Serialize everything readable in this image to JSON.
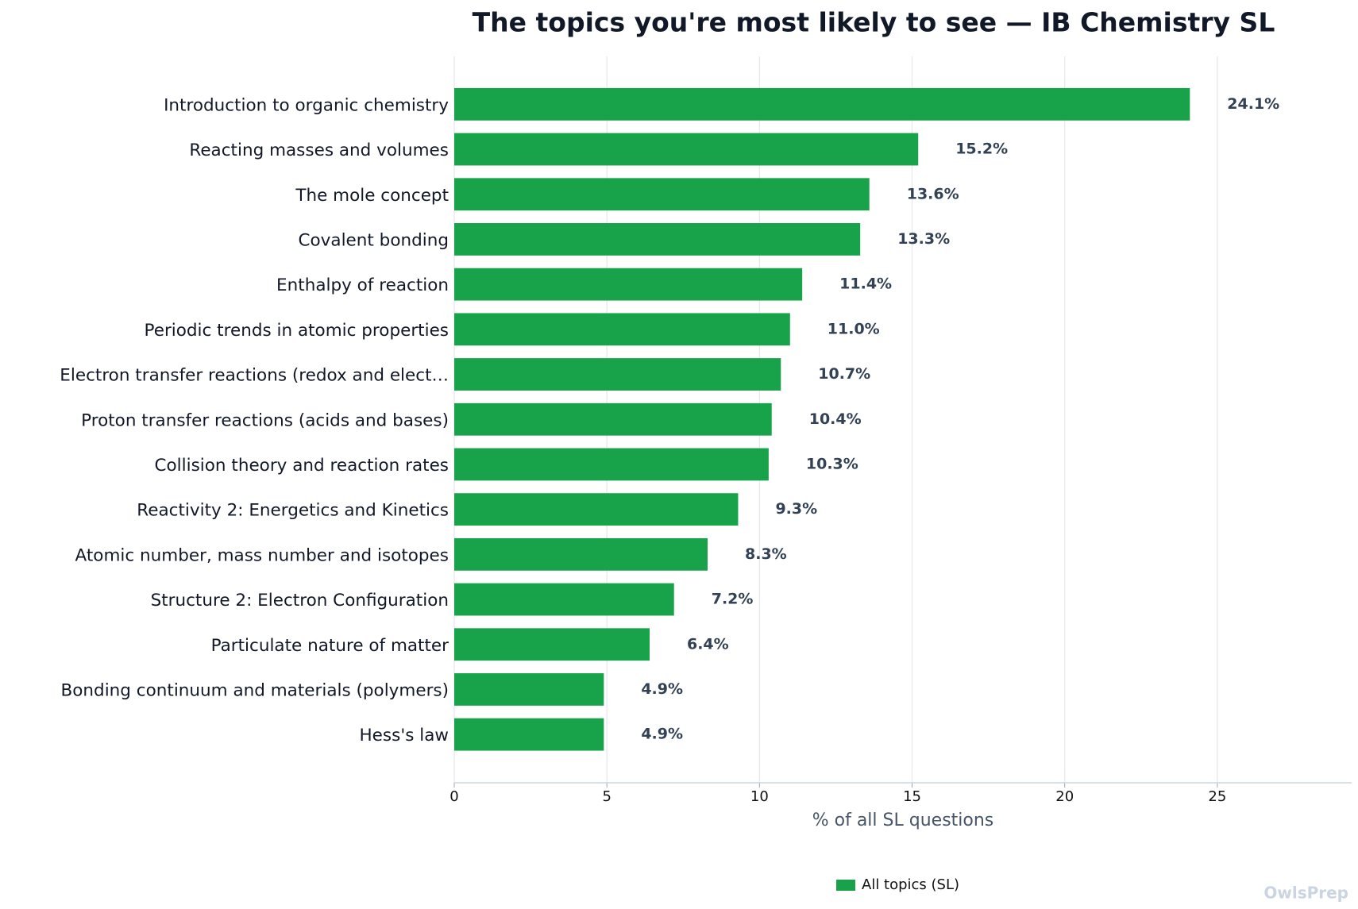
{
  "chart_data": {
    "type": "bar",
    "orientation": "horizontal",
    "title": "The topics you're most likely to see — IB Chemistry SL",
    "categories": [
      "Introduction to organic chemistry",
      "Reacting masses and volumes",
      "The mole concept",
      "Covalent bonding",
      "Enthalpy of reaction",
      "Periodic trends in atomic properties",
      "Electron transfer reactions (redox and elect…",
      "Proton transfer reactions (acids and bases)",
      "Collision theory and reaction rates",
      "Reactivity 2: Energetics and Kinetics",
      "Atomic number, mass number and isotopes",
      "Structure 2: Electron Configuration",
      "Particulate nature of matter",
      "Bonding continuum and materials (polymers)",
      "Hess's law"
    ],
    "series": [
      {
        "name": "All topics (SL)",
        "color": "#18a34a",
        "values": [
          24.1,
          15.2,
          13.6,
          13.3,
          11.4,
          11.0,
          10.7,
          10.4,
          10.3,
          9.3,
          8.3,
          7.2,
          6.4,
          4.9,
          4.9
        ],
        "value_labels": [
          "24.1%",
          "15.2%",
          "13.6%",
          "13.3%",
          "11.4%",
          "11.0%",
          "10.7%",
          "10.4%",
          "10.3%",
          "9.3%",
          "8.3%",
          "7.2%",
          "6.4%",
          "4.9%",
          "4.9%"
        ]
      }
    ],
    "xlabel": "% of all SL questions",
    "xlim": [
      0,
      29.4
    ],
    "xticks": [
      0,
      5,
      10,
      15,
      20,
      25
    ],
    "grid": true,
    "legend": "bottom",
    "watermark": "OwlsPrep"
  }
}
